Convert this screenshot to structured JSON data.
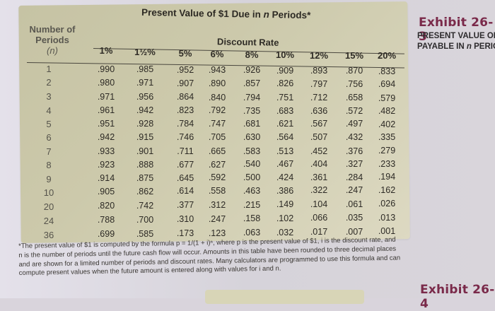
{
  "document": {
    "title_prefix": "Present Value of $1 Due in ",
    "title_n": "n",
    "title_suffix": " Periods*",
    "row_header": {
      "line1": "Number of",
      "line2": "Periods",
      "line3": "(n)"
    },
    "group_header": "Discount Rate"
  },
  "sidebar": {
    "exhibit_top": "Exhibit 26-3",
    "exhibit_top_sub_line1": "PRESENT VALUE OF",
    "exhibit_top_sub_line2_prefix": "PAYABLE IN ",
    "exhibit_top_sub_line2_n": "n",
    "exhibit_top_sub_line2_suffix": " PERIO",
    "exhibit_bottom": "Exhibit 26-4"
  },
  "table": {
    "columns": [
      "1%",
      "1½%",
      "5%",
      "6%",
      "8%",
      "10%",
      "12%",
      "15%",
      "20%"
    ],
    "rows": [
      {
        "n": "1",
        "values": [
          ".990",
          ".985",
          ".952",
          ".943",
          ".926",
          ".909",
          ".893",
          ".870",
          ".833"
        ]
      },
      {
        "n": "2",
        "values": [
          ".980",
          ".971",
          ".907",
          ".890",
          ".857",
          ".826",
          ".797",
          ".756",
          ".694"
        ]
      },
      {
        "n": "3",
        "values": [
          ".971",
          ".956",
          ".864",
          ".840",
          ".794",
          ".751",
          ".712",
          ".658",
          ".579"
        ]
      },
      {
        "n": "4",
        "values": [
          ".961",
          ".942",
          ".823",
          ".792",
          ".735",
          ".683",
          ".636",
          ".572",
          ".482"
        ]
      },
      {
        "n": "5",
        "values": [
          ".951",
          ".928",
          ".784",
          ".747",
          ".681",
          ".621",
          ".567",
          ".497",
          ".402"
        ]
      },
      {
        "n": "6",
        "values": [
          ".942",
          ".915",
          ".746",
          ".705",
          ".630",
          ".564",
          ".507",
          ".432",
          ".335"
        ]
      },
      {
        "n": "7",
        "values": [
          ".933",
          ".901",
          ".711",
          ".665",
          ".583",
          ".513",
          ".452",
          ".376",
          ".279"
        ]
      },
      {
        "n": "8",
        "values": [
          ".923",
          ".888",
          ".677",
          ".627",
          ".540",
          ".467",
          ".404",
          ".327",
          ".233"
        ]
      },
      {
        "n": "9",
        "values": [
          ".914",
          ".875",
          ".645",
          ".592",
          ".500",
          ".424",
          ".361",
          ".284",
          ".194"
        ]
      },
      {
        "n": "10",
        "values": [
          ".905",
          ".862",
          ".614",
          ".558",
          ".463",
          ".386",
          ".322",
          ".247",
          ".162"
        ]
      },
      {
        "n": "20",
        "values": [
          ".820",
          ".742",
          ".377",
          ".312",
          ".215",
          ".149",
          ".104",
          ".061",
          ".026"
        ]
      },
      {
        "n": "24",
        "values": [
          ".788",
          ".700",
          ".310",
          ".247",
          ".158",
          ".102",
          ".066",
          ".035",
          ".013"
        ]
      },
      {
        "n": "36",
        "values": [
          ".699",
          ".585",
          ".173",
          ".123",
          ".063",
          ".032",
          ".017",
          ".007",
          ".001"
        ]
      }
    ]
  },
  "footnote": {
    "lines": [
      "*The present value of $1 is computed by the formula p = 1/(1 + i)ⁿ, where p is the present value of $1, i is the discount rate, and",
      "n is the number of periods until the future cash flow will occur. Amounts in this table have been rounded to three decimal places",
      "and are shown for a limited number of periods and discount rates. Many calculators are programmed to use this formula and can",
      "compute present values when the future amount is entered along with values for i and n."
    ]
  },
  "colors": {
    "panel": "#ccc9ab",
    "page": "#d9d4dc",
    "exhibit_accent": "#7a2a4a"
  }
}
